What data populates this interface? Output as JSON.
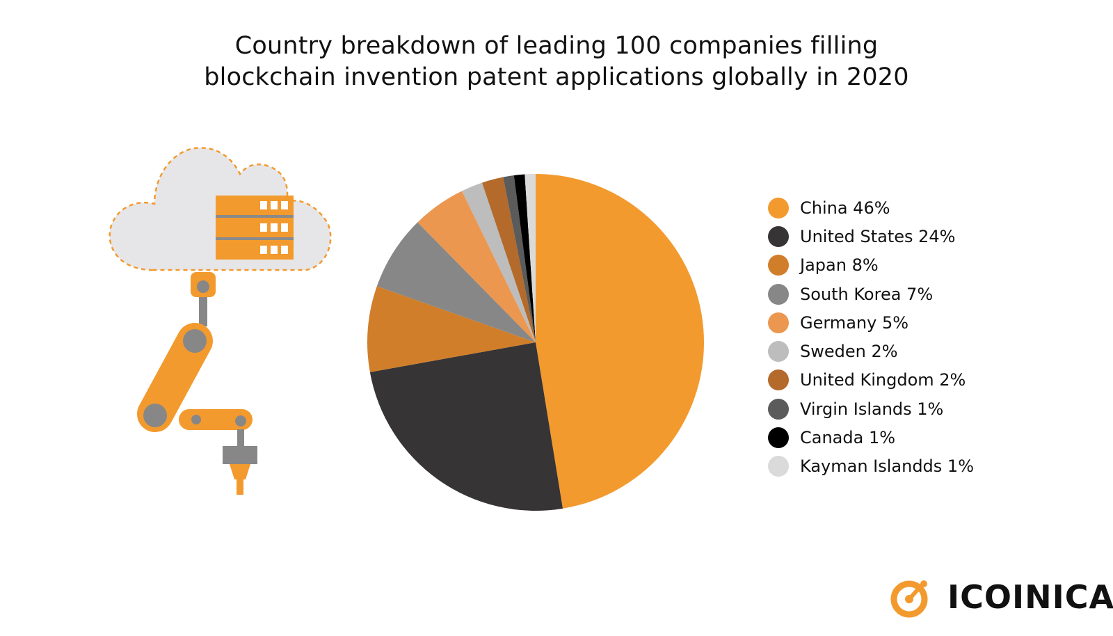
{
  "chart_data": {
    "type": "pie",
    "title": [
      "Country breakdown of leading 100 companies filling",
      "blockchain invention patent applications globally in 2020"
    ],
    "legend_position": "right",
    "slices": [
      {
        "label": "China 46%",
        "value": 46,
        "color": "#F39A2E"
      },
      {
        "label": "United States 24%",
        "value": 24,
        "color": "#363435"
      },
      {
        "label": "Japan 8%",
        "value": 8,
        "color": "#D17E2A"
      },
      {
        "label": "South Korea 7%",
        "value": 7,
        "color": "#878787"
      },
      {
        "label": "Germany 5%",
        "value": 5,
        "color": "#EB9750"
      },
      {
        "label": "Sweden 2%",
        "value": 2,
        "color": "#BDBDBD"
      },
      {
        "label": "United Kingdom 2%",
        "value": 2,
        "color": "#B36A2A"
      },
      {
        "label": "Virgin Islands 1%",
        "value": 1,
        "color": "#5B5B5B"
      },
      {
        "label": "Canada 1%",
        "value": 1,
        "color": "#000000"
      },
      {
        "label": "Kayman Islandds 1%",
        "value": 1,
        "color": "#DADADA"
      }
    ]
  },
  "brand": {
    "name": "ICOINICAL",
    "logo_icon": "target-gauge-icon",
    "accent_color": "#F39A2E"
  },
  "illustration": {
    "icon": "cloud-server-robot-arm-icon"
  }
}
